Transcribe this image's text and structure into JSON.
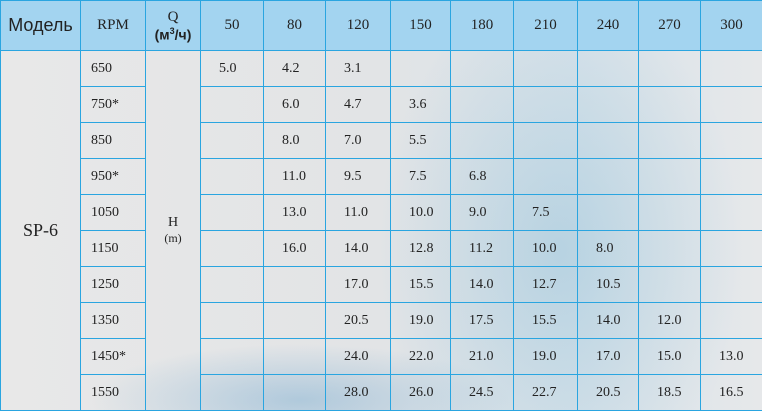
{
  "header": {
    "model": "Модель",
    "rpm": "RPM",
    "q": "Q",
    "q_unit_pre": "(м",
    "q_unit_sup": "3",
    "q_unit_post": "/ч)",
    "flows": [
      "50",
      "80",
      "120",
      "150",
      "180",
      "210",
      "240",
      "270",
      "300"
    ]
  },
  "model": "SP-6",
  "h_label": "H",
  "h_unit": "(m)",
  "rows": [
    {
      "rpm": "650",
      "values": [
        "5.0",
        "4.2",
        "3.1",
        "",
        "",
        "",
        "",
        "",
        ""
      ]
    },
    {
      "rpm": "750*",
      "values": [
        "",
        "6.0",
        "4.7",
        "3.6",
        "",
        "",
        "",
        "",
        ""
      ]
    },
    {
      "rpm": "850",
      "values": [
        "",
        "8.0",
        "7.0",
        "5.5",
        "",
        "",
        "",
        "",
        ""
      ]
    },
    {
      "rpm": "950*",
      "values": [
        "",
        "11.0",
        "9.5",
        "7.5",
        "6.8",
        "",
        "",
        "",
        ""
      ]
    },
    {
      "rpm": "1050",
      "values": [
        "",
        "13.0",
        "11.0",
        "10.0",
        "9.0",
        "7.5",
        "",
        "",
        ""
      ]
    },
    {
      "rpm": "1150",
      "values": [
        "",
        "16.0",
        "14.0",
        "12.8",
        "11.2",
        "10.0",
        "8.0",
        "",
        ""
      ]
    },
    {
      "rpm": "1250",
      "values": [
        "",
        "",
        "17.0",
        "15.5",
        "14.0",
        "12.7",
        "10.5",
        "",
        ""
      ]
    },
    {
      "rpm": "1350",
      "values": [
        "",
        "",
        "20.5",
        "19.0",
        "17.5",
        "15.5",
        "14.0",
        "12.0",
        ""
      ]
    },
    {
      "rpm": "1450*",
      "values": [
        "",
        "",
        "24.0",
        "22.0",
        "21.0",
        "19.0",
        "17.0",
        "15.0",
        "13.0"
      ]
    },
    {
      "rpm": "1550",
      "values": [
        "",
        "",
        "28.0",
        "26.0",
        "24.5",
        "22.7",
        "20.5",
        "18.5",
        "16.5"
      ]
    }
  ],
  "colors": {
    "header_bg": "#a3d4f0",
    "grid": "#2aa5e0",
    "body_bg": "#e6e6e6"
  }
}
